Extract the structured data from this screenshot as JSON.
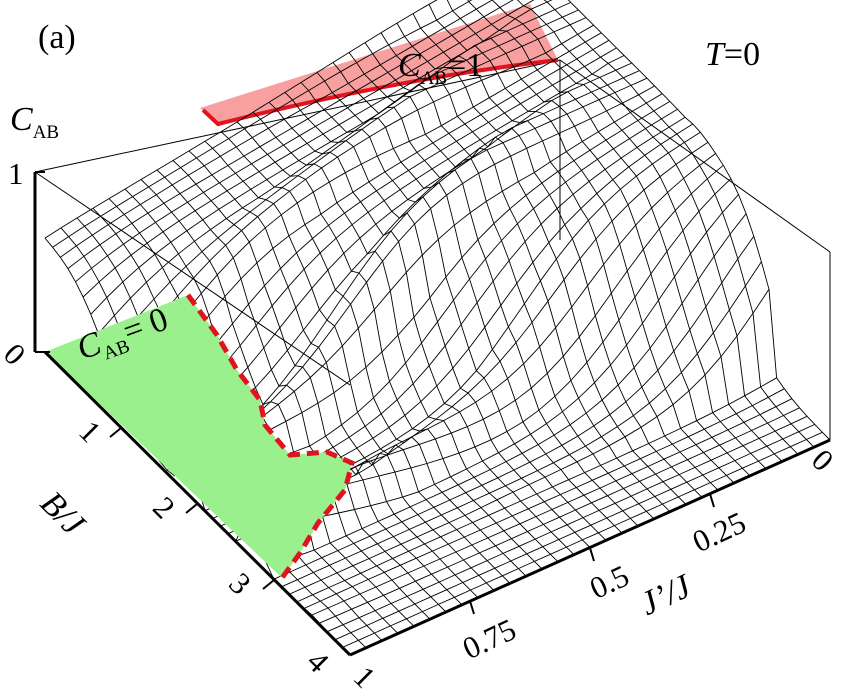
{
  "figure": {
    "panel_label": "(a)",
    "temperature_label": {
      "symbol": "T",
      "text": "=0"
    }
  },
  "chart_data": {
    "type": "surface-3d",
    "title": "",
    "quantity": {
      "symbol": "C",
      "subscript": "AB"
    },
    "z_axis": {
      "ticks": [
        "0",
        "1"
      ],
      "range": [
        0,
        1
      ]
    },
    "x_axis": {
      "label": "B/J",
      "ticks": [
        "0",
        "1",
        "2",
        "3",
        "4"
      ],
      "range": [
        0,
        4
      ]
    },
    "y_axis": {
      "label": "J’/J",
      "ticks": [
        "0",
        "0.25",
        "0.5",
        "0.75",
        "1"
      ],
      "range": [
        0,
        1
      ]
    },
    "regions": [
      {
        "name": "C_AB=1",
        "label": {
          "symbol": "C",
          "subscript": "AB",
          "value": "=1"
        },
        "color": "#f8a0a0",
        "boundary_color": "#e0141e"
      },
      {
        "name": "C_AB=0",
        "label": {
          "symbol": "C",
          "subscript": "AB",
          "value": "= 0"
        },
        "color": "#9af08c",
        "boundary_color": "#e0141e"
      }
    ],
    "grid": true,
    "mesh_color": "#000000"
  }
}
